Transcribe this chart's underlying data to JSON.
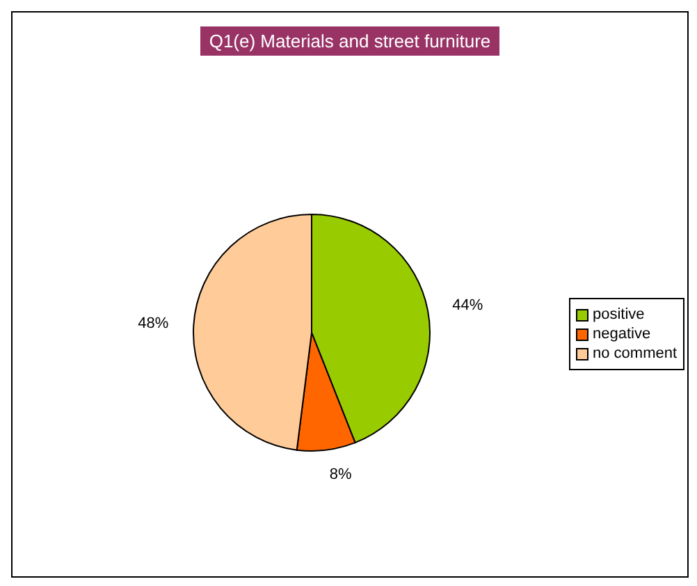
{
  "chart_data": {
    "type": "pie",
    "title": "Q1(e) Materials and street furniture",
    "categories": [
      "positive",
      "negative",
      "no comment"
    ],
    "values": [
      44,
      8,
      48
    ],
    "colors": [
      "#99cc00",
      "#ff6600",
      "#ffcc99"
    ],
    "value_labels": [
      "44%",
      "8%",
      "48%"
    ],
    "legend": "right"
  }
}
